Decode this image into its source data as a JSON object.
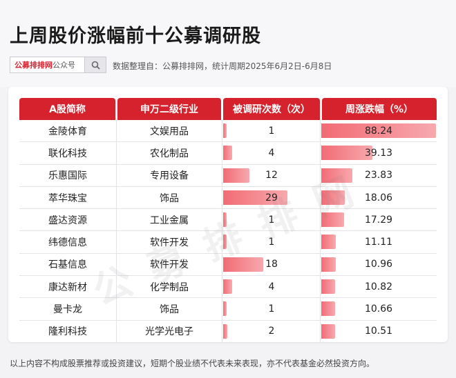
{
  "title": "上周股价涨幅前十公募调研股",
  "search": {
    "brand": "公募排排网",
    "suffix": "公众号",
    "icon": "search-icon"
  },
  "meta": "数据整理自：公募排排网，统计周期2025年6月2日-6月8日",
  "watermark": "公募排排网",
  "footer": "以上内容不构成股票推荐或投资建议，短期个股业绩不代表未来表现，亦不代表基金必然投资方向。",
  "colors": {
    "header": "#d6222d",
    "bar_start": "#f26b74",
    "bar_end": "#f7a9ae"
  },
  "chart_data": {
    "type": "table",
    "columns": [
      "A股简称",
      "申万二级行业",
      "被调研次数（次）",
      "周涨跌幅（%）"
    ],
    "rows": [
      {
        "name": "金陵体育",
        "industry": "文娱用品",
        "surveys": 1,
        "surveys_label": "1",
        "change": 88.24,
        "change_label": "88.24"
      },
      {
        "name": "联化科技",
        "industry": "农化制品",
        "surveys": 4,
        "surveys_label": "4",
        "change": 39.13,
        "change_label": "39.13"
      },
      {
        "name": "乐惠国际",
        "industry": "专用设备",
        "surveys": 12,
        "surveys_label": "12",
        "change": 23.83,
        "change_label": "23.83"
      },
      {
        "name": "萃华珠宝",
        "industry": "饰品",
        "surveys": 29,
        "surveys_label": "29",
        "change": 18.06,
        "change_label": "18.06"
      },
      {
        "name": "盛达资源",
        "industry": "工业金属",
        "surveys": 1,
        "surveys_label": "1",
        "change": 17.29,
        "change_label": "17.29"
      },
      {
        "name": "纬德信息",
        "industry": "软件开发",
        "surveys": 1,
        "surveys_label": "1",
        "change": 11.11,
        "change_label": "11.11"
      },
      {
        "name": "石基信息",
        "industry": "软件开发",
        "surveys": 18,
        "surveys_label": "18",
        "change": 10.96,
        "change_label": "10.96"
      },
      {
        "name": "康达新材",
        "industry": "化学制品",
        "surveys": 4,
        "surveys_label": "4",
        "change": 10.82,
        "change_label": "10.82"
      },
      {
        "name": "曼卡龙",
        "industry": "饰品",
        "surveys": 1,
        "surveys_label": "1",
        "change": 10.66,
        "change_label": "10.66"
      },
      {
        "name": "隆利科技",
        "industry": "光学光电子",
        "surveys": 2,
        "surveys_label": "2",
        "change": 10.51,
        "change_label": "10.51"
      }
    ]
  }
}
